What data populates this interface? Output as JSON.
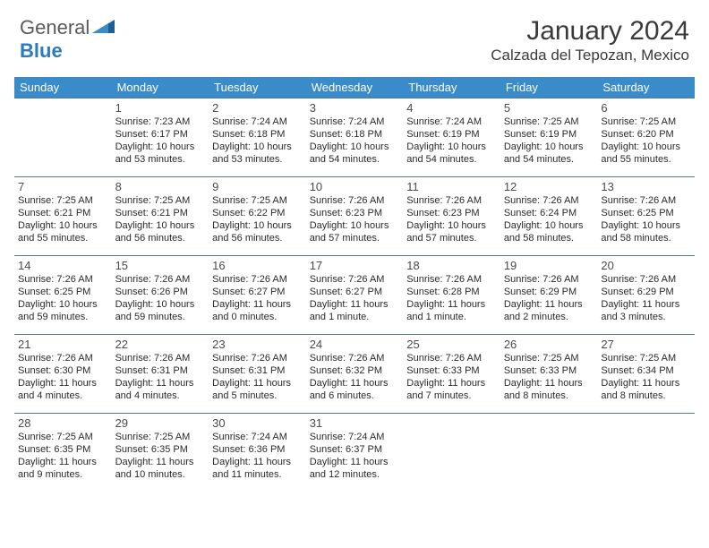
{
  "brand": {
    "part1": "General",
    "part2": "Blue"
  },
  "title": "January 2024",
  "location": "Calzada del Tepozan, Mexico",
  "colors": {
    "header_bg": "#3a8bc9",
    "header_text": "#ffffff",
    "border": "#5a7a94",
    "text": "#2a2a2a",
    "logo_gray": "#5a5a5a",
    "logo_blue": "#2b7bbd",
    "brand_shape_dark": "#1f5e94",
    "brand_shape_light": "#3a8bc9"
  },
  "weekdays": [
    "Sunday",
    "Monday",
    "Tuesday",
    "Wednesday",
    "Thursday",
    "Friday",
    "Saturday"
  ],
  "weeks": [
    [
      null,
      {
        "n": "1",
        "sr": "7:23 AM",
        "ss": "6:17 PM",
        "dl": "10 hours and 53 minutes."
      },
      {
        "n": "2",
        "sr": "7:24 AM",
        "ss": "6:18 PM",
        "dl": "10 hours and 53 minutes."
      },
      {
        "n": "3",
        "sr": "7:24 AM",
        "ss": "6:18 PM",
        "dl": "10 hours and 54 minutes."
      },
      {
        "n": "4",
        "sr": "7:24 AM",
        "ss": "6:19 PM",
        "dl": "10 hours and 54 minutes."
      },
      {
        "n": "5",
        "sr": "7:25 AM",
        "ss": "6:19 PM",
        "dl": "10 hours and 54 minutes."
      },
      {
        "n": "6",
        "sr": "7:25 AM",
        "ss": "6:20 PM",
        "dl": "10 hours and 55 minutes."
      }
    ],
    [
      {
        "n": "7",
        "sr": "7:25 AM",
        "ss": "6:21 PM",
        "dl": "10 hours and 55 minutes."
      },
      {
        "n": "8",
        "sr": "7:25 AM",
        "ss": "6:21 PM",
        "dl": "10 hours and 56 minutes."
      },
      {
        "n": "9",
        "sr": "7:25 AM",
        "ss": "6:22 PM",
        "dl": "10 hours and 56 minutes."
      },
      {
        "n": "10",
        "sr": "7:26 AM",
        "ss": "6:23 PM",
        "dl": "10 hours and 57 minutes."
      },
      {
        "n": "11",
        "sr": "7:26 AM",
        "ss": "6:23 PM",
        "dl": "10 hours and 57 minutes."
      },
      {
        "n": "12",
        "sr": "7:26 AM",
        "ss": "6:24 PM",
        "dl": "10 hours and 58 minutes."
      },
      {
        "n": "13",
        "sr": "7:26 AM",
        "ss": "6:25 PM",
        "dl": "10 hours and 58 minutes."
      }
    ],
    [
      {
        "n": "14",
        "sr": "7:26 AM",
        "ss": "6:25 PM",
        "dl": "10 hours and 59 minutes."
      },
      {
        "n": "15",
        "sr": "7:26 AM",
        "ss": "6:26 PM",
        "dl": "10 hours and 59 minutes."
      },
      {
        "n": "16",
        "sr": "7:26 AM",
        "ss": "6:27 PM",
        "dl": "11 hours and 0 minutes."
      },
      {
        "n": "17",
        "sr": "7:26 AM",
        "ss": "6:27 PM",
        "dl": "11 hours and 1 minute."
      },
      {
        "n": "18",
        "sr": "7:26 AM",
        "ss": "6:28 PM",
        "dl": "11 hours and 1 minute."
      },
      {
        "n": "19",
        "sr": "7:26 AM",
        "ss": "6:29 PM",
        "dl": "11 hours and 2 minutes."
      },
      {
        "n": "20",
        "sr": "7:26 AM",
        "ss": "6:29 PM",
        "dl": "11 hours and 3 minutes."
      }
    ],
    [
      {
        "n": "21",
        "sr": "7:26 AM",
        "ss": "6:30 PM",
        "dl": "11 hours and 4 minutes."
      },
      {
        "n": "22",
        "sr": "7:26 AM",
        "ss": "6:31 PM",
        "dl": "11 hours and 4 minutes."
      },
      {
        "n": "23",
        "sr": "7:26 AM",
        "ss": "6:31 PM",
        "dl": "11 hours and 5 minutes."
      },
      {
        "n": "24",
        "sr": "7:26 AM",
        "ss": "6:32 PM",
        "dl": "11 hours and 6 minutes."
      },
      {
        "n": "25",
        "sr": "7:26 AM",
        "ss": "6:33 PM",
        "dl": "11 hours and 7 minutes."
      },
      {
        "n": "26",
        "sr": "7:25 AM",
        "ss": "6:33 PM",
        "dl": "11 hours and 8 minutes."
      },
      {
        "n": "27",
        "sr": "7:25 AM",
        "ss": "6:34 PM",
        "dl": "11 hours and 8 minutes."
      }
    ],
    [
      {
        "n": "28",
        "sr": "7:25 AM",
        "ss": "6:35 PM",
        "dl": "11 hours and 9 minutes."
      },
      {
        "n": "29",
        "sr": "7:25 AM",
        "ss": "6:35 PM",
        "dl": "11 hours and 10 minutes."
      },
      {
        "n": "30",
        "sr": "7:24 AM",
        "ss": "6:36 PM",
        "dl": "11 hours and 11 minutes."
      },
      {
        "n": "31",
        "sr": "7:24 AM",
        "ss": "6:37 PM",
        "dl": "11 hours and 12 minutes."
      },
      null,
      null,
      null
    ]
  ],
  "labels": {
    "sunrise": "Sunrise: ",
    "sunset": "Sunset: ",
    "daylight": "Daylight: "
  }
}
